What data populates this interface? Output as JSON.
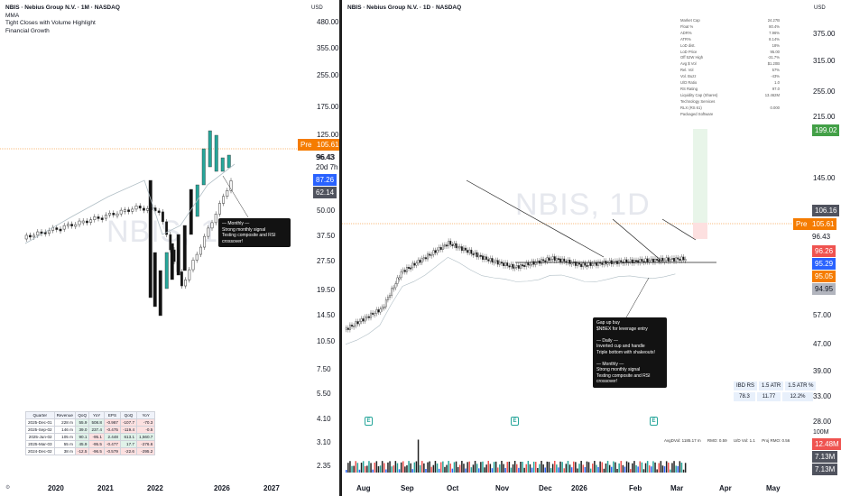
{
  "left": {
    "title": "NBIS · Nebius Group N.V. · 1M · NASDAQ",
    "indicators": [
      "MMA",
      "Tight Closes with Volume Highlight",
      "Financial Growth"
    ],
    "watermark": "NBIS, 1M",
    "currency": "USD",
    "price_labels": [
      "480.00",
      "355.00",
      "255.00",
      "175.00",
      "125.00",
      "96.43",
      "50.00",
      "37.50",
      "27.50",
      "19.50",
      "14.50",
      "10.50",
      "7.50",
      "5.50",
      "4.10",
      "3.10",
      "2.35"
    ],
    "tags": {
      "pre_label": "Pre",
      "pre_value": "105.61",
      "countdown": "20d 7h",
      "blue_value": "87.26",
      "dark_value": "62.14",
      "close_value": "96.43"
    },
    "x_labels": [
      "2020",
      "2021",
      "2022",
      "2026",
      "2027"
    ],
    "note": "— Monthly —\nStrong monthly signal\nTesting composite and RSI crossover!",
    "financials": {
      "headers": [
        "Quarter",
        "Revenue",
        "QoQ",
        "YoY",
        "EPS",
        "QoQ",
        "YoY"
      ],
      "rows": [
        [
          "2025-Dec-01",
          "228 m",
          "55.9",
          "508.8",
          "-0.987",
          "-107.7",
          "-70.3"
        ],
        [
          "2025-Sep-02",
          "146 m",
          "39.0",
          "237.4",
          "-0.475",
          "-119.4",
          "-0.5"
        ],
        [
          "2025-Jun-02",
          "105 m",
          "90.1",
          "-95.1",
          "2.448",
          "613.1",
          "1,560.7"
        ],
        [
          "2025-Mar-03",
          "55 m",
          "45.9",
          "-95.5",
          "-0.477",
          "17.7",
          "-276.6"
        ],
        [
          "2024-Dec-02",
          "38 m",
          "-12.5",
          "-96.5",
          "-0.579",
          "-22.6",
          "-295.2"
        ]
      ]
    }
  },
  "right": {
    "title": "NBIS · Nebius Group N.V. · 1D · NASDAQ",
    "watermark": "NBIS, 1D",
    "currency": "USD",
    "price_labels": [
      "375.00",
      "315.00",
      "255.00",
      "215.00",
      "145.00",
      "57.00",
      "47.00",
      "39.00",
      "33.00",
      "28.00"
    ],
    "tags": {
      "green_target": "199.02",
      "grey_top": "106.16",
      "pre_label": "Pre",
      "pre_value": "105.61",
      "close_value": "96.43",
      "red_value": "96.26",
      "blue_value": "95.29",
      "orange_value": "95.05",
      "grey_bottom": "94.95",
      "vol_red": "12.48M",
      "vol_grey1": "7.13M",
      "vol_grey2": "7.13M",
      "vol_axis": "100M"
    },
    "x_labels": [
      "Aug",
      "Sep",
      "Oct",
      "Nov",
      "Dec",
      "2026",
      "Feb",
      "Mar",
      "Apr",
      "May"
    ],
    "stats": [
      [
        "Market Cap",
        "24.27B"
      ],
      [
        "Float %",
        "80.4%"
      ],
      [
        "ADR%",
        "7.96%"
      ],
      [
        "ATR%",
        "8.14%"
      ],
      [
        "LoD dist.",
        "18%"
      ],
      [
        "LoD Price",
        "95.00"
      ],
      [
        "Off 52W High",
        "-31.7%"
      ],
      [
        "Avg $ Vol",
        "$1.20B"
      ],
      [
        "Rel. Vol",
        "57%"
      ],
      [
        "Vol. Buzz",
        "-43%"
      ],
      [
        "U/D Ratio",
        "1.0"
      ],
      [
        "RS Rating",
        "97.0"
      ],
      [
        "Liquidity Cap (Shares)",
        "13.462M"
      ],
      [
        "Technology Services",
        ""
      ],
      [
        "RLX (RS 61)",
        "0.000"
      ],
      [
        "Packaged Software",
        ""
      ]
    ],
    "ibd": {
      "headers": [
        "IBD RS",
        "1.5 ATR",
        "1.5 ATR %"
      ],
      "values": [
        "78.3",
        "11.77",
        "12.2%"
      ]
    },
    "bottom_stats": {
      "avg_vol": "AvgDVol: 1185.17 m",
      "rmo": "RMO: 0.59",
      "ud_vol": "U/D Vol: 1.1",
      "proj_rmo": "Proj RMO: 0.56"
    },
    "note": "Gap up buy\n$NBEX for leverage entry\n\n— Daily —\nInverted cup and handle\nTriple bottom with shakeouts!\n\n— Monthly —\nStrong monthly signal\nTesting composite and RSI crossover!",
    "earnings_icon": "E"
  },
  "colors": {
    "up": "#26a69a",
    "down": "#ef5350",
    "orange": "#f57c00",
    "blue": "#2962ff",
    "green_dark": "#1b9e3e",
    "grey": "#787b86"
  }
}
